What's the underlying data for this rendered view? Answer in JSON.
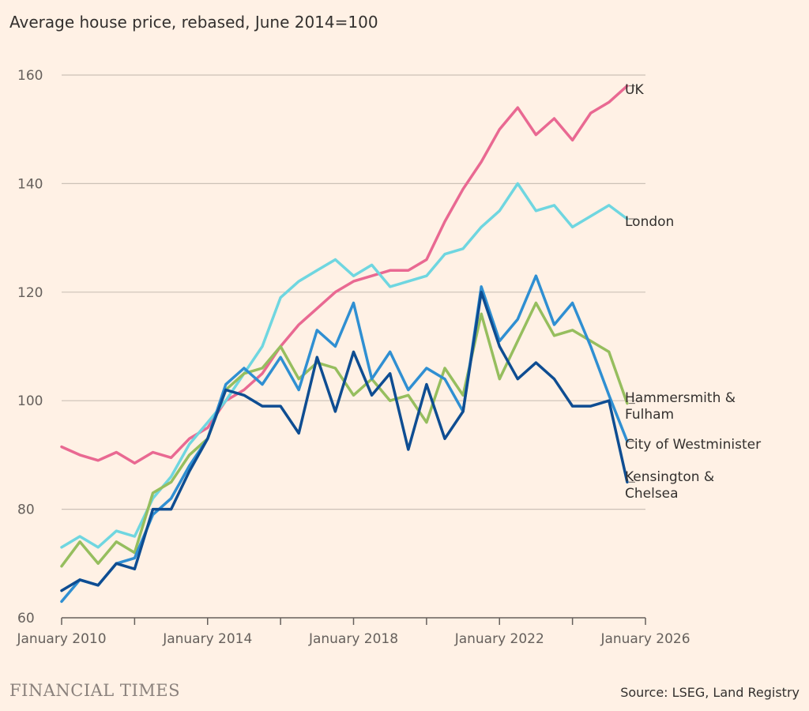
{
  "subtitle": "Average house price, rebased, June 2014=100",
  "brand": "FINANCIAL TIMES",
  "source": "Source: LSEG, Land Registry",
  "chart_data": {
    "type": "line",
    "title": "",
    "xlabel": "",
    "ylabel": "",
    "ylim": [
      60,
      160
    ],
    "yticks": [
      60,
      80,
      100,
      120,
      140,
      160
    ],
    "xlim": [
      2010.0,
      2026.0
    ],
    "xticks": [
      2010,
      2012,
      2014,
      2016,
      2018,
      2020,
      2022,
      2024,
      2026
    ],
    "xtick_labels": [
      {
        "x": 2010,
        "label": "January 2010"
      },
      {
        "x": 2014,
        "label": "January 2014"
      },
      {
        "x": 2018,
        "label": "January 2018"
      },
      {
        "x": 2022,
        "label": "January 2022"
      },
      {
        "x": 2026,
        "label": "January 2026"
      }
    ],
    "grid": "horizontal",
    "legend": "direct labels at line ends",
    "series": [
      {
        "name": "UK",
        "label_lines": [
          "UK"
        ],
        "color": "#E96992",
        "x": [
          2010.0,
          2010.5,
          2011.0,
          2011.5,
          2012.0,
          2012.5,
          2013.0,
          2013.5,
          2014.0,
          2014.5,
          2015.0,
          2015.5,
          2016.0,
          2016.5,
          2017.0,
          2017.5,
          2018.0,
          2018.5,
          2019.0,
          2019.5,
          2020.0,
          2020.5,
          2021.0,
          2021.5,
          2022.0,
          2022.5,
          2023.0,
          2023.5,
          2024.0,
          2024.5,
          2025.0,
          2025.5
        ],
        "y": [
          91.5,
          90,
          89,
          90.5,
          88.5,
          90.5,
          89.5,
          93,
          95,
          100,
          102,
          105,
          110,
          114,
          117,
          120,
          122,
          123,
          124,
          124,
          126,
          133,
          139,
          144,
          150,
          154,
          149,
          152,
          148,
          153,
          155,
          158
        ]
      },
      {
        "name": "London",
        "label_lines": [
          "London"
        ],
        "color": "#6FD6E0",
        "x": [
          2010.0,
          2010.5,
          2011.0,
          2011.5,
          2012.0,
          2012.5,
          2013.0,
          2013.5,
          2014.0,
          2014.5,
          2015.0,
          2015.5,
          2016.0,
          2016.5,
          2017.0,
          2017.5,
          2018.0,
          2018.5,
          2019.0,
          2019.5,
          2020.0,
          2020.5,
          2021.0,
          2021.5,
          2022.0,
          2022.5,
          2023.0,
          2023.5,
          2024.0,
          2024.5,
          2025.0,
          2025.5
        ],
        "y": [
          73,
          75,
          73,
          76,
          75,
          82,
          86,
          92,
          96,
          100,
          105,
          110,
          119,
          122,
          124,
          126,
          123,
          125,
          121,
          122,
          123,
          127,
          128,
          132,
          135,
          140,
          135,
          136,
          132,
          134,
          136,
          133.5
        ]
      },
      {
        "name": "Hammersmith & Fulham",
        "label_lines": [
          "Hammersmith &",
          "Fulham"
        ],
        "color": "#96BE5E",
        "x": [
          2010.0,
          2010.5,
          2011.0,
          2011.5,
          2012.0,
          2012.5,
          2013.0,
          2013.5,
          2014.0,
          2014.5,
          2015.0,
          2015.5,
          2016.0,
          2016.5,
          2017.0,
          2017.5,
          2018.0,
          2018.5,
          2019.0,
          2019.5,
          2020.0,
          2020.5,
          2021.0,
          2021.5,
          2022.0,
          2022.5,
          2023.0,
          2023.5,
          2024.0,
          2024.5,
          2025.0,
          2025.5
        ],
        "y": [
          69.5,
          74,
          70,
          74,
          72,
          83,
          85,
          90,
          93,
          102,
          105,
          106,
          110,
          104,
          107,
          106,
          101,
          104,
          100,
          101,
          96,
          106,
          101,
          116,
          104,
          111,
          118,
          112,
          113,
          111,
          109,
          99.5
        ]
      },
      {
        "name": "City of Westminister",
        "label_lines": [
          "City of Westminister"
        ],
        "color": "#2F8FD2",
        "x": [
          2010.0,
          2010.5,
          2011.0,
          2011.5,
          2012.0,
          2012.5,
          2013.0,
          2013.5,
          2014.0,
          2014.5,
          2015.0,
          2015.5,
          2016.0,
          2016.5,
          2017.0,
          2017.5,
          2018.0,
          2018.5,
          2019.0,
          2019.5,
          2020.0,
          2020.5,
          2021.0,
          2021.5,
          2022.0,
          2022.5,
          2023.0,
          2023.5,
          2024.0,
          2024.5,
          2025.0,
          2025.5
        ],
        "y": [
          63,
          67,
          66,
          70,
          71,
          79,
          82,
          88,
          93,
          103,
          106,
          103,
          108,
          102,
          113,
          110,
          118,
          104,
          109,
          102,
          106,
          104,
          98,
          121,
          111,
          115,
          123,
          114,
          118,
          110,
          101,
          92.5
        ]
      },
      {
        "name": "Kensington & Chelsea",
        "label_lines": [
          "Kensington &",
          "Chelsea"
        ],
        "color": "#0E4D92",
        "x": [
          2010.0,
          2010.5,
          2011.0,
          2011.5,
          2012.0,
          2012.5,
          2013.0,
          2013.5,
          2014.0,
          2014.5,
          2015.0,
          2015.5,
          2016.0,
          2016.5,
          2017.0,
          2017.5,
          2018.0,
          2018.5,
          2019.0,
          2019.5,
          2020.0,
          2020.5,
          2021.0,
          2021.5,
          2022.0,
          2022.5,
          2023.0,
          2023.5,
          2024.0,
          2024.5,
          2025.0,
          2025.5
        ],
        "y": [
          65,
          67,
          66,
          70,
          69,
          80,
          80,
          87,
          93,
          102,
          101,
          99,
          99,
          94,
          108,
          98,
          109,
          101,
          105,
          91,
          103,
          93,
          98,
          120,
          110,
          104,
          107,
          104,
          99,
          99,
          100,
          85
        ]
      }
    ]
  }
}
